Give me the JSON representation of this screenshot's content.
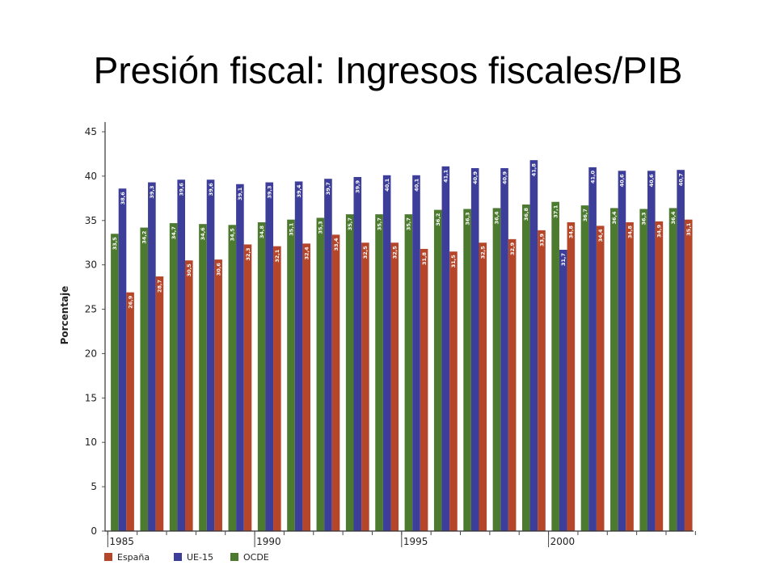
{
  "title": "Presión fiscal: Ingresos fiscales/PIB",
  "chart_data": {
    "type": "bar",
    "title": "",
    "xlabel": "",
    "ylabel": "Porcentaje",
    "ylim": [
      0,
      45
    ],
    "yticks": [
      0,
      5,
      10,
      15,
      20,
      25,
      30,
      35,
      40,
      45
    ],
    "x_tick_labels": [
      {
        "year": 1985,
        "label": "1985"
      },
      {
        "year": 1990,
        "label": "1990"
      },
      {
        "year": 1995,
        "label": "1995"
      },
      {
        "year": 2000,
        "label": "2000"
      }
    ],
    "categories": [
      1985,
      1986,
      1987,
      1988,
      1989,
      1990,
      1991,
      1992,
      1993,
      1994,
      1995,
      1996,
      1997,
      1998,
      1999,
      2000,
      2001,
      2002,
      2003,
      2004
    ],
    "grid": false,
    "legend_position": "bottom-left",
    "series": [
      {
        "name": "OCDE",
        "color": "#4c7a2e",
        "values": [
          33.5,
          34.2,
          34.7,
          34.6,
          34.5,
          34.8,
          35.1,
          35.3,
          35.7,
          35.7,
          35.7,
          36.2,
          36.3,
          36.4,
          36.8,
          37.1,
          36.7,
          36.4,
          36.3,
          36.4
        ],
        "labels": [
          "33,5",
          "34,2",
          "34,7",
          "34,6",
          "34,5",
          "34,8",
          "35,1",
          "35,3",
          "35,7",
          "35,7",
          "35,7",
          "36,2",
          "36,3",
          "36,4",
          "36,8",
          "37,1",
          "36,7",
          "36,4",
          "36,3",
          "36,4"
        ]
      },
      {
        "name": "UE-15",
        "color": "#3d3e9a",
        "values": [
          38.6,
          39.3,
          39.6,
          39.6,
          39.1,
          39.3,
          39.4,
          39.7,
          39.9,
          40.1,
          40.1,
          41.1,
          40.9,
          40.9,
          41.8,
          31.7,
          41.0,
          40.6,
          40.6,
          40.7
        ],
        "labels": [
          "38,6",
          "39,3",
          "39,6",
          "39,6",
          "39,1",
          "39,3",
          "39,4",
          "39,7",
          "39,9",
          "40,1",
          "40,1",
          "41,1",
          "40,9",
          "40,9",
          "41,8",
          "31,7",
          "41,0",
          "40,6",
          "40,6",
          "40,7"
        ]
      },
      {
        "name": "España",
        "color": "#b5462a",
        "values": [
          26.9,
          28.7,
          30.5,
          30.6,
          32.3,
          32.1,
          32.4,
          33.4,
          32.5,
          32.5,
          31.8,
          31.5,
          32.5,
          32.9,
          33.9,
          34.8,
          34.4,
          34.8,
          34.9,
          35.1
        ],
        "labels": [
          "26,9",
          "28,7",
          "30,5",
          "30,6",
          "32,3",
          "32,1",
          "32,4",
          "33,4",
          "32,5",
          "32,5",
          "31,8",
          "31,5",
          "32,5",
          "32,9",
          "33,9",
          "34,8",
          "34,4",
          "34,8",
          "34,9",
          "35,1"
        ]
      }
    ],
    "legend_order": [
      "España",
      "UE-15",
      "OCDE"
    ]
  }
}
